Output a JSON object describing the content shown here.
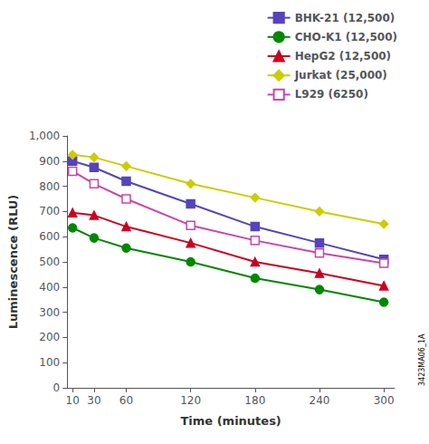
{
  "chart_data": {
    "type": "line",
    "xlabel": "Time (minutes)",
    "ylabel": "Luminescence (RLU)",
    "x": [
      10,
      30,
      60,
      120,
      180,
      240,
      300
    ],
    "series": [
      {
        "name": "BHK-21 (12,500)",
        "color": "#5544bb",
        "marker": "square",
        "values": [
          900,
          875,
          820,
          730,
          640,
          575,
          510
        ]
      },
      {
        "name": "CHO-K1 (12,500)",
        "color": "#008800",
        "marker": "circle",
        "values": [
          635,
          595,
          555,
          500,
          435,
          390,
          340
        ]
      },
      {
        "name": "HepG2 (12,500)",
        "color": "#cc0022",
        "marker": "triangle",
        "values": [
          695,
          685,
          640,
          575,
          500,
          455,
          405
        ]
      },
      {
        "name": "Jurkat (25,000)",
        "color": "#cccc00",
        "marker": "diamond",
        "values": [
          925,
          915,
          880,
          810,
          755,
          700,
          650
        ]
      },
      {
        "name": "L929 (6250)",
        "color": "#cc44aa",
        "marker": "open_square",
        "values": [
          860,
          810,
          750,
          645,
          585,
          535,
          495
        ]
      }
    ],
    "xlim": [
      5,
      310
    ],
    "xticks": [
      10,
      30,
      60,
      120,
      180,
      240,
      300
    ],
    "ylim": [
      0,
      1000
    ],
    "yticks": [
      0,
      100,
      200,
      300,
      400,
      500,
      600,
      700,
      800,
      900,
      {
        "value": 1000,
        "label": "1,000"
      }
    ],
    "annotation": "3423MA06_1A",
    "legend": "upper right",
    "grid": false
  }
}
